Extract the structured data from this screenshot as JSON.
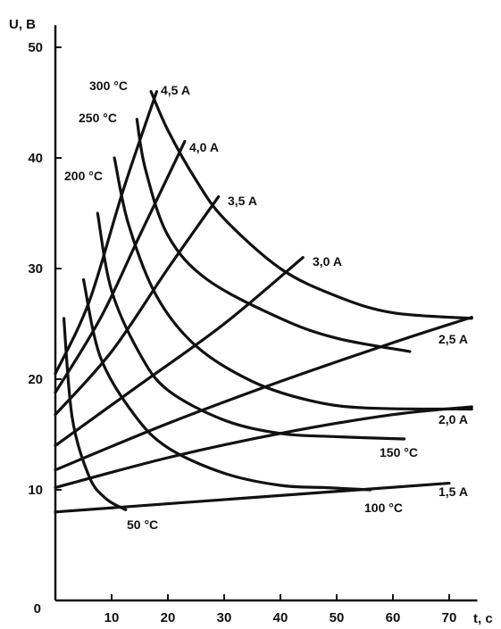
{
  "chart_data": {
    "type": "line",
    "title": "",
    "xlabel": "t, c",
    "ylabel": "U, B",
    "xlim": [
      0,
      75
    ],
    "ylim": [
      0,
      52
    ],
    "xticks": [
      "0",
      "10",
      "20",
      "30",
      "40",
      "50",
      "60",
      "70"
    ],
    "yticks": [
      "10",
      "20",
      "30",
      "40",
      "50"
    ],
    "grid": false,
    "current_series": [
      {
        "name": "1,5 A",
        "points": [
          [
            0,
            8
          ],
          [
            70,
            10.6
          ]
        ]
      },
      {
        "name": "2,0 A",
        "points": [
          [
            0,
            10.2
          ],
          [
            20,
            12.9
          ],
          [
            40,
            15.1
          ],
          [
            60,
            16.8
          ],
          [
            74,
            17.5
          ]
        ]
      },
      {
        "name": "2,5 A",
        "points": [
          [
            0,
            11.8
          ],
          [
            20,
            16
          ],
          [
            40,
            19.8
          ],
          [
            60,
            23.3
          ],
          [
            74,
            25.6
          ]
        ]
      },
      {
        "name": "3,0 A",
        "points": [
          [
            0,
            14
          ],
          [
            15,
            19.5
          ],
          [
            30,
            25
          ],
          [
            44,
            31
          ]
        ]
      },
      {
        "name": "3,5 A",
        "points": [
          [
            0,
            16.8
          ],
          [
            10,
            22.5
          ],
          [
            20,
            30
          ],
          [
            29,
            36.5
          ]
        ]
      },
      {
        "name": "4,0 A",
        "points": [
          [
            0,
            18.8
          ],
          [
            8,
            25.5
          ],
          [
            15,
            33
          ],
          [
            23,
            41.5
          ]
        ]
      },
      {
        "name": "4,5 A",
        "points": [
          [
            0,
            20.5
          ],
          [
            6,
            27
          ],
          [
            12,
            37
          ],
          [
            18,
            46
          ]
        ]
      }
    ],
    "temperature_series": [
      {
        "name": "50 °C",
        "points": [
          [
            1.5,
            25.5
          ],
          [
            3,
            16.5
          ],
          [
            6,
            11.2
          ],
          [
            9,
            9.2
          ],
          [
            12.5,
            8.2
          ]
        ]
      },
      {
        "name": "100 °C",
        "points": [
          [
            5,
            29
          ],
          [
            8,
            22
          ],
          [
            14,
            16.8
          ],
          [
            20,
            13.8
          ],
          [
            30,
            11.5
          ],
          [
            40,
            10.4
          ],
          [
            48,
            10.2
          ],
          [
            56,
            10
          ]
        ]
      },
      {
        "name": "150 °C",
        "points": [
          [
            7.5,
            35
          ],
          [
            10,
            28
          ],
          [
            15,
            22.3
          ],
          [
            20,
            19
          ],
          [
            30,
            16.3
          ],
          [
            40,
            15.1
          ],
          [
            50,
            14.8
          ],
          [
            62,
            14.6
          ]
        ]
      },
      {
        "name": "200 °C",
        "points": [
          [
            10.5,
            40
          ],
          [
            13,
            34
          ],
          [
            18,
            27.5
          ],
          [
            25,
            23
          ],
          [
            35,
            19.8
          ],
          [
            45,
            18.1
          ],
          [
            55,
            17.4
          ],
          [
            74,
            17.3
          ]
        ]
      },
      {
        "name": "250 °C",
        "points": [
          [
            14.5,
            43.5
          ],
          [
            16,
            39
          ],
          [
            20,
            33
          ],
          [
            27,
            29
          ],
          [
            40,
            25.5
          ],
          [
            50,
            23.7
          ],
          [
            63,
            22.5
          ]
        ]
      },
      {
        "name": "300 °C",
        "points": [
          [
            17,
            46
          ],
          [
            20,
            42.5
          ],
          [
            25,
            38
          ],
          [
            30,
            34.5
          ],
          [
            40,
            30
          ],
          [
            50,
            27.5
          ],
          [
            60,
            26
          ],
          [
            74,
            25.5
          ]
        ]
      }
    ],
    "annotations": [
      "300 °C",
      "250 °C",
      "200 °C",
      "150 °C",
      "100 °C",
      "50 °C",
      "4,5 A",
      "4,0 A",
      "3,5 A",
      "3,0 A",
      "2,5 A",
      "2,0 A",
      "1,5 A"
    ],
    "origin_label": "0"
  }
}
